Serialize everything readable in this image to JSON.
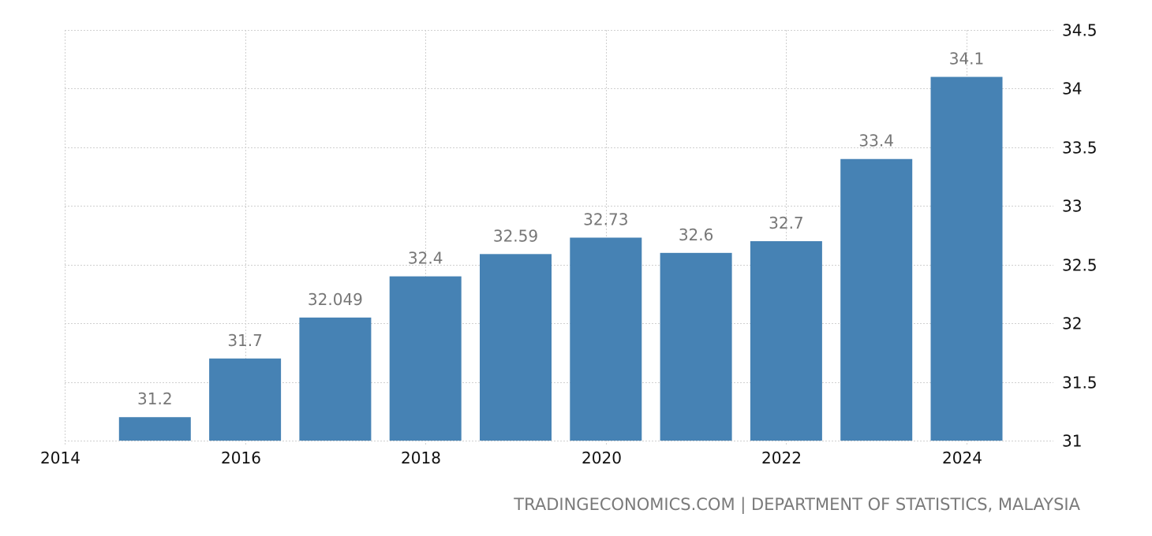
{
  "chart_data": {
    "type": "bar",
    "title": "",
    "xlabel": "",
    "ylabel": "",
    "categories": [
      "2015",
      "2016",
      "2017",
      "2018",
      "2019",
      "2020",
      "2021",
      "2022",
      "2023",
      "2024"
    ],
    "values": [
      31.2,
      31.7,
      32.049,
      32.4,
      32.59,
      32.73,
      32.6,
      32.7,
      33.4,
      34.1
    ],
    "value_labels": [
      "31.2",
      "31.7",
      "32.049",
      "32.4",
      "32.59",
      "32.73",
      "32.6",
      "32.7",
      "33.4",
      "34.1"
    ],
    "ylim": [
      31,
      34.5
    ],
    "yticks": [
      "31",
      "31.5",
      "32",
      "32.5",
      "33",
      "33.5",
      "34",
      "34.5"
    ],
    "xticks": [
      "2014",
      "2016",
      "2018",
      "2020",
      "2022",
      "2024"
    ],
    "xlim": [
      2014,
      2025
    ],
    "grid": true,
    "y_axis_position": "right",
    "bar_color": "#4682b4",
    "label_color": "#777777"
  },
  "source": "TRADINGECONOMICS.COM | DEPARTMENT OF STATISTICS, MALAYSIA"
}
